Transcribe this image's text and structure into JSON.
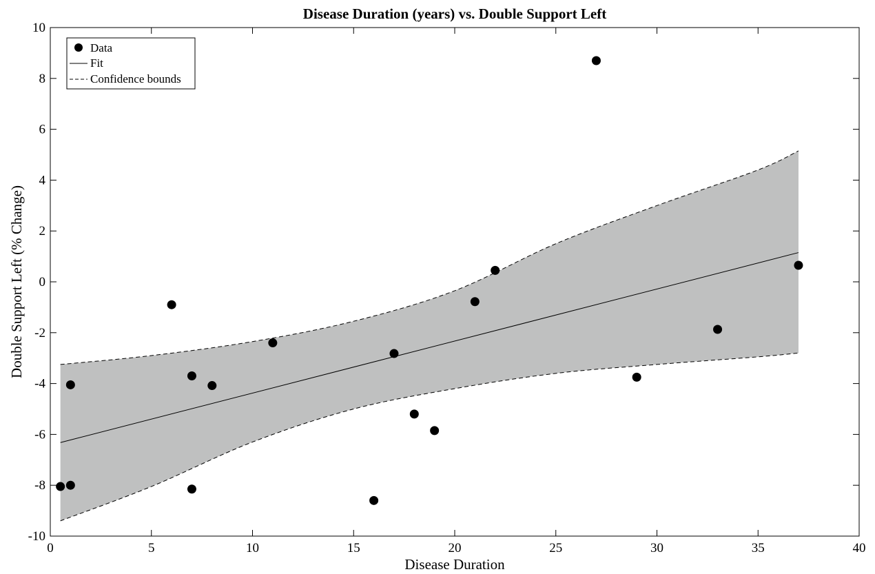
{
  "chart_data": {
    "type": "scatter",
    "title": "Disease Duration (years) vs. Double Support Left",
    "xlabel": "Disease Duration",
    "ylabel": "Double Support Left (% Change)",
    "xlim": [
      0,
      40
    ],
    "ylim": [
      -10,
      10
    ],
    "xticks": [
      0,
      5,
      10,
      15,
      20,
      25,
      30,
      35,
      40
    ],
    "yticks": [
      -10,
      -8,
      -6,
      -4,
      -2,
      0,
      2,
      4,
      6,
      8,
      10
    ],
    "xtick_labels": [
      "0",
      "5",
      "10",
      "15",
      "20",
      "25",
      "30",
      "35",
      "40"
    ],
    "ytick_labels": [
      "-10",
      "-8",
      "-6",
      "-4",
      "-2",
      "0",
      "2",
      "4",
      "6",
      "8",
      "10"
    ],
    "grid": false,
    "legend": {
      "position": "top-left",
      "entries": [
        "Data",
        "Fit",
        "Confidence bounds"
      ]
    },
    "points": [
      {
        "x": 0.5,
        "y": -8.05
      },
      {
        "x": 1,
        "y": -8.0
      },
      {
        "x": 1,
        "y": -4.05
      },
      {
        "x": 6,
        "y": -0.9
      },
      {
        "x": 7,
        "y": -3.7
      },
      {
        "x": 7,
        "y": -8.15
      },
      {
        "x": 8,
        "y": -4.08
      },
      {
        "x": 11,
        "y": -2.4
      },
      {
        "x": 16,
        "y": -8.6
      },
      {
        "x": 17,
        "y": -2.82
      },
      {
        "x": 18,
        "y": -5.2
      },
      {
        "x": 19,
        "y": -5.85
      },
      {
        "x": 21,
        "y": -0.78
      },
      {
        "x": 22,
        "y": 0.45
      },
      {
        "x": 27,
        "y": 8.7
      },
      {
        "x": 29,
        "y": -3.75
      },
      {
        "x": 33,
        "y": -1.87
      },
      {
        "x": 37,
        "y": 0.65
      }
    ],
    "fit": {
      "x": [
        0.5,
        37
      ],
      "y": [
        -6.32,
        1.15
      ]
    },
    "confidence_upper": {
      "x": [
        0.5,
        5,
        10,
        15,
        20,
        25,
        30,
        35,
        37
      ],
      "y": [
        -3.25,
        -2.9,
        -2.35,
        -1.55,
        -0.35,
        1.5,
        3.0,
        4.4,
        5.15
      ]
    },
    "confidence_lower": {
      "x": [
        0.5,
        5,
        10,
        15,
        20,
        25,
        30,
        35,
        37
      ],
      "y": [
        -9.4,
        -8.05,
        -6.3,
        -5.0,
        -4.2,
        -3.6,
        -3.25,
        -2.95,
        -2.8
      ]
    },
    "colors": {
      "band": "#bfc0c0",
      "markers": "#000000",
      "lines": "#000000"
    }
  }
}
